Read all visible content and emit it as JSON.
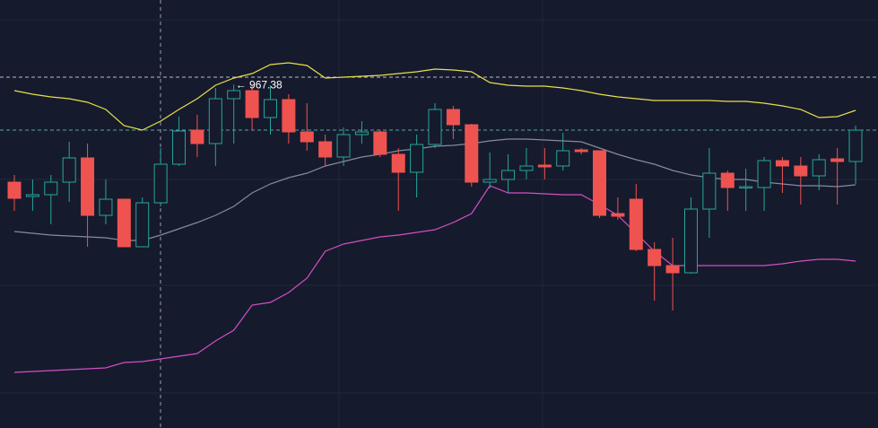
{
  "chart_data": {
    "type": "candlestick",
    "annotation": "← 967.38",
    "ylim": [
      776,
      1014.5
    ],
    "up_color": "#26a69a",
    "down_color": "#ef5350",
    "open": [
      913,
      905,
      906,
      913,
      926.5,
      894.5,
      903.5,
      877,
      901.5,
      923,
      942,
      934.5,
      959.5,
      964,
      949,
      959,
      941,
      935.5,
      927,
      939.5,
      941,
      928.5,
      918.5,
      934,
      953.5,
      945,
      913,
      914.5,
      919.5,
      922.5,
      922,
      931,
      930.5,
      895.5,
      903.5,
      875.5,
      866.5,
      862.5,
      898,
      918,
      910,
      910,
      925,
      922,
      916.5,
      926,
      924.5
    ],
    "high": [
      917,
      914.5,
      917,
      935.5,
      934.5,
      914.5,
      903.5,
      904.5,
      932,
      949.5,
      950.5,
      965.5,
      967.38,
      967,
      967,
      962,
      957,
      939.5,
      943.5,
      947,
      942,
      932,
      939.5,
      957,
      955.5,
      945.5,
      929.5,
      928.5,
      932,
      932,
      940.5,
      932,
      930.5,
      904.5,
      912,
      879.5,
      882,
      904.5,
      932,
      919.5,
      920.5,
      927,
      927,
      927,
      928.5,
      932,
      944.5
    ],
    "low": [
      897,
      897,
      889.5,
      902,
      877,
      889.5,
      877,
      877,
      899.5,
      922,
      927,
      922,
      934.5,
      942,
      939.5,
      934.5,
      930.5,
      922,
      922,
      934.5,
      927,
      897,
      904.5,
      932,
      937,
      910.5,
      909.5,
      907,
      914.5,
      914.5,
      919.5,
      928.5,
      893,
      892,
      874.5,
      847,
      841.5,
      862,
      882,
      897,
      897,
      897,
      907,
      900.5,
      908.5,
      900.5,
      912
    ],
    "close": [
      904,
      906,
      913,
      926.5,
      894.5,
      903.5,
      877,
      901.5,
      923,
      941.5,
      934.5,
      959.5,
      964,
      949,
      959,
      941,
      935.5,
      927,
      939.5,
      941,
      928.5,
      918.5,
      934,
      953.5,
      945,
      913,
      914.5,
      919.5,
      922,
      921.5,
      930.5,
      930,
      894.5,
      894,
      875.5,
      866.5,
      862.5,
      898,
      918,
      910,
      910.5,
      925,
      922,
      916.5,
      925.5,
      924.5,
      942
    ],
    "series": [
      {
        "color": "#e6e04a",
        "values": [
          964,
          962,
          960.5,
          959.5,
          957.5,
          953.5,
          944.5,
          942,
          947,
          953.5,
          959.5,
          967,
          971,
          973.5,
          978.5,
          979.5,
          978,
          971,
          971.5,
          972,
          972.5,
          973.5,
          974.5,
          976,
          975.5,
          974.5,
          968.5,
          967,
          966.5,
          966.5,
          965.5,
          964,
          962,
          960.5,
          959.5,
          958.5,
          958.5,
          958.5,
          958.5,
          958,
          958,
          957,
          955.5,
          953.5,
          949,
          949.5,
          953
        ]
      },
      {
        "color": "#868aa0",
        "values": [
          885.5,
          884.5,
          883.5,
          883,
          882.5,
          882,
          880.5,
          880.5,
          883.5,
          887,
          890.5,
          894.5,
          899.5,
          907,
          912,
          915.5,
          918,
          922,
          924.5,
          927,
          928.5,
          930.5,
          931.5,
          933,
          933.5,
          934.5,
          936,
          937,
          937,
          936.5,
          936,
          935.5,
          932,
          928.5,
          925.5,
          923,
          919.5,
          917,
          915.5,
          914.5,
          914.5,
          913,
          912,
          911,
          911,
          910.5,
          911.5
        ]
      },
      {
        "color": "#d24fc2",
        "values": [
          807,
          807.5,
          808,
          808.5,
          809,
          809.5,
          812.5,
          813,
          814.5,
          816,
          817.5,
          824.5,
          830.5,
          844.5,
          846,
          851.5,
          859.5,
          874.5,
          878.5,
          880.5,
          882.5,
          883.5,
          885,
          886.5,
          890.5,
          895.5,
          911,
          907,
          907,
          906.5,
          906,
          906,
          900.5,
          894.5,
          884.5,
          874.5,
          866.5,
          866.5,
          866.5,
          866.5,
          866.5,
          866.5,
          867.5,
          869,
          870,
          870,
          869
        ]
      }
    ]
  }
}
